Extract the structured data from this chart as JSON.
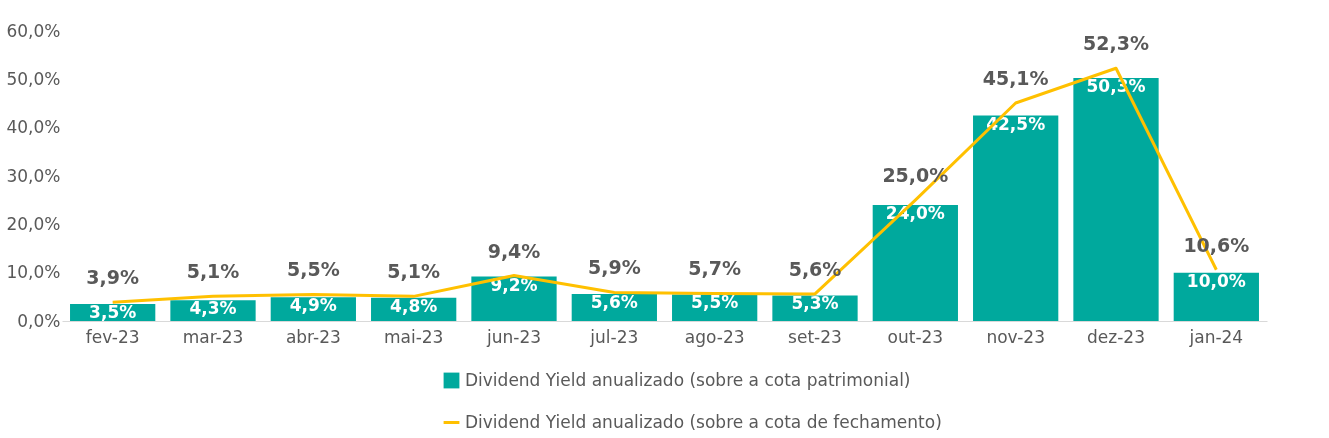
{
  "chart_data": {
    "type": "bar",
    "categories": [
      "fev-23",
      "mar-23",
      "abr-23",
      "mai-23",
      "jun-23",
      "jul-23",
      "ago-23",
      "set-23",
      "out-23",
      "nov-23",
      "dez-23",
      "jan-24"
    ],
    "series": [
      {
        "name": "Dividend Yield anualizado (sobre a cota patrimonial)",
        "color": "#00a99d",
        "values": [
          3.5,
          4.3,
          4.9,
          4.8,
          9.2,
          5.6,
          5.5,
          5.3,
          24.0,
          42.5,
          50.3,
          10.0
        ],
        "value_labels": [
          "3,5%",
          "4,3%",
          "4,9%",
          "4,8%",
          "9,2%",
          "5,6%",
          "5,5%",
          "5,3%",
          "24,0%",
          "42,5%",
          "50,3%",
          "10,0%"
        ]
      },
      {
        "name": "Dividend Yield anualizado (sobre a cota de fechamento)",
        "type": "line",
        "color": "#ffc000",
        "values": [
          3.9,
          5.1,
          5.5,
          5.1,
          9.4,
          5.9,
          5.7,
          5.6,
          25.0,
          45.1,
          52.3,
          10.6
        ],
        "value_labels": [
          "3,9%",
          "5,1%",
          "5,5%",
          "5,1%",
          "9,4%",
          "5,9%",
          "5,7%",
          "5,6%",
          "25,0%",
          "45,1%",
          "52,3%",
          "10,6%"
        ]
      }
    ],
    "ylim": [
      0,
      60
    ],
    "yticks": [
      {
        "value": 0,
        "label": "0,0%"
      },
      {
        "value": 10,
        "label": "10,0%"
      },
      {
        "value": 20,
        "label": "20,0%"
      },
      {
        "value": 30,
        "label": "30,0%"
      },
      {
        "value": 40,
        "label": "40,0%"
      },
      {
        "value": 50,
        "label": "50,0%"
      },
      {
        "value": 60,
        "label": "60,0%"
      }
    ],
    "grid": false,
    "legend": "bottom"
  }
}
